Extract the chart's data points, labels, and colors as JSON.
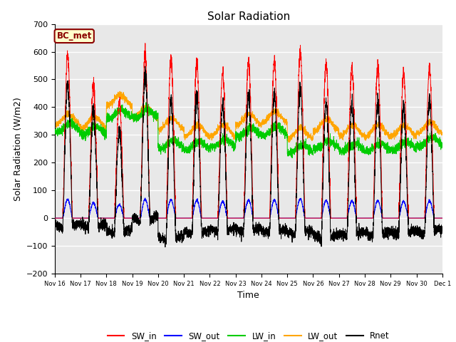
{
  "title": "Solar Radiation",
  "xlabel": "Time",
  "ylabel": "Solar Radiation (W/m2)",
  "ylim": [
    -200,
    700
  ],
  "annotation": "BC_met",
  "annotation_color": "#8B0000",
  "annotation_bg": "#FFFFCC",
  "bg_color": "#E8E8E8",
  "grid_color": "white",
  "colors": {
    "SW_in": "red",
    "SW_out": "blue",
    "LW_in": "#00CC00",
    "LW_out": "orange",
    "Rnet": "black"
  },
  "n_days": 15,
  "points_per_day": 288,
  "SW_in_peaks": [
    590,
    470,
    420,
    590,
    580,
    560,
    520,
    565,
    565,
    600,
    555,
    545,
    545,
    525,
    540
  ],
  "LW_out_bases": [
    355,
    345,
    425,
    380,
    340,
    315,
    315,
    355,
    365,
    305,
    335,
    315,
    315,
    315,
    325
  ],
  "LW_in_bases": [
    325,
    315,
    375,
    375,
    265,
    260,
    270,
    310,
    315,
    250,
    265,
    255,
    255,
    260,
    275
  ],
  "tick_labels": [
    "Nov 16",
    "Nov 17",
    "Nov 18",
    "Nov 19",
    "Nov 20",
    "Nov 21",
    "Nov 22",
    "Nov 23",
    "Nov 24",
    "Nov 25",
    "Nov 26",
    "Nov 27",
    "Nov 28",
    "Nov 29",
    "Nov 30",
    "Dec 1"
  ],
  "yticks": [
    -200,
    -100,
    0,
    100,
    200,
    300,
    400,
    500,
    600,
    700
  ]
}
